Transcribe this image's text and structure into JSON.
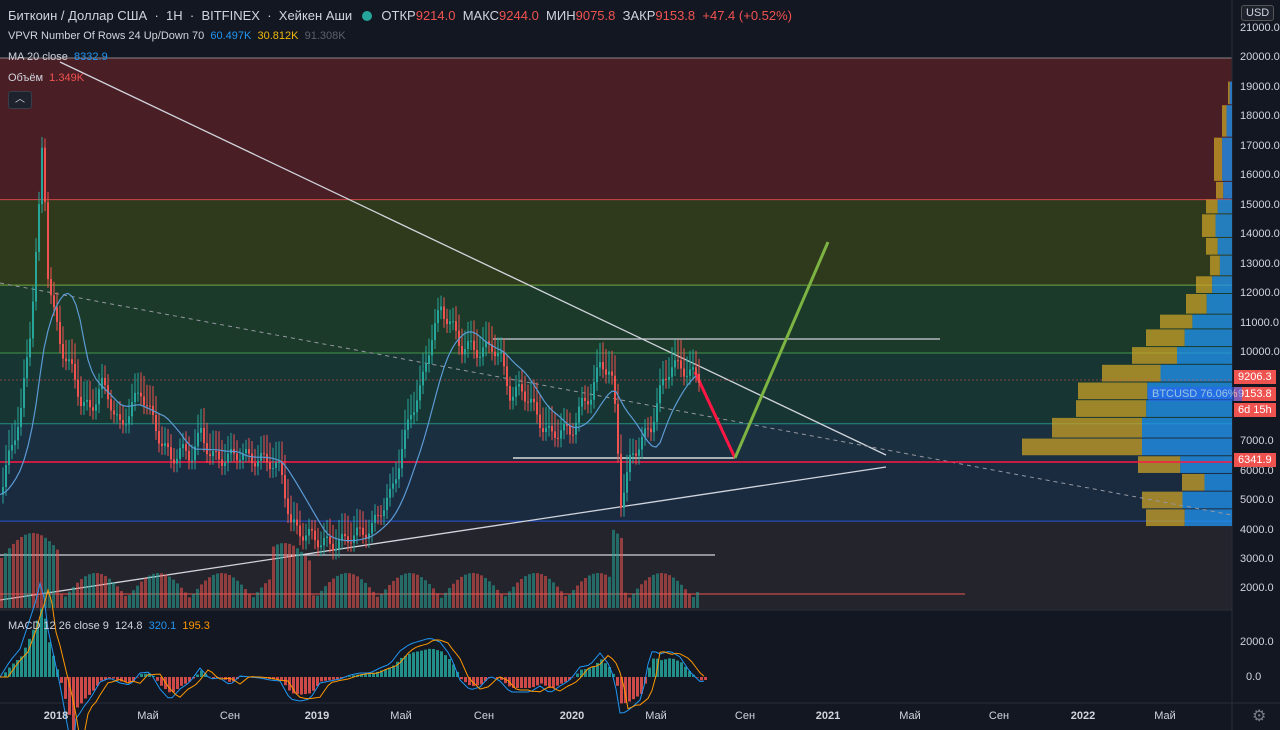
{
  "header": {
    "symbol": "Биткоин / Доллар США",
    "interval": "1H",
    "exchange": "BITFINEX",
    "chart_style": "Хейкен Аши",
    "open_label": "ОТКР",
    "open": "9214.0",
    "high_label": "МАКС",
    "high": "9244.0",
    "low_label": "МИН",
    "low": "9075.8",
    "close_label": "ЗАКР",
    "close": "9153.8",
    "change": "+47.4 (+0.52%)"
  },
  "indicators": {
    "vpvr_label": "VPVR Number Of Rows 24 Up/Down 70",
    "vpvr_up": "60.497K",
    "vpvr_down": "30.812K",
    "vpvr_total": "91.308K",
    "ma_label": "MA 20 close",
    "ma_value": "8332.9",
    "volume_label": "Объём",
    "volume_value": "1.349K",
    "macd_label": "MACD 12 26 close 9",
    "macd_hist": "124.8",
    "macd_line": "320.1",
    "macd_signal": "195.3"
  },
  "price_axis": {
    "currency": "USD",
    "ticks": [
      "21000.0",
      "20000.0",
      "19000.0",
      "18000.0",
      "17000.0",
      "16000.0",
      "15000.0",
      "14000.0",
      "13000.0",
      "12000.0",
      "11000.0",
      "10000.0",
      "7000.0",
      "6000.0",
      "5000.0",
      "4000.0",
      "3000.0",
      "2000.0"
    ],
    "tag_price": "9206.3",
    "tag_last": "9153.8",
    "tag_symbol": "BTCUSD 76.06%",
    "tag_countdown": "6d 15h",
    "tag_level": "6341.9"
  },
  "macd_axis": {
    "ticks": [
      "2000.0",
      "0.0"
    ]
  },
  "time_axis": [
    "2018",
    "Май",
    "Сен",
    "2019",
    "Май",
    "Сен",
    "2020",
    "Май",
    "Сен",
    "2021",
    "Май",
    "Сен",
    "2022",
    "Май"
  ],
  "colors": {
    "up": "#26a69a",
    "down": "#ef5350",
    "bg": "#131722",
    "ma": "#2962ff"
  },
  "chart_data": {
    "type": "candlestick",
    "title": "Биткоин / Доллар США 1H BITFINEX",
    "ylim": [
      1000,
      21500
    ],
    "fib_levels": [
      20000,
      15200,
      12300,
      10000,
      7600,
      6342,
      4300
    ],
    "horizontal_levels": [
      10500,
      6450,
      6342,
      3150
    ],
    "projection": [
      {
        "from": 9200,
        "to": 6450,
        "color": "red"
      },
      {
        "from": 6450,
        "to": 13800,
        "color": "green"
      }
    ]
  }
}
